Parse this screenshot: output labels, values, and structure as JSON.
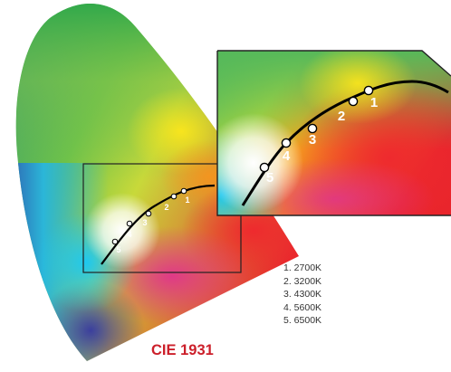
{
  "diagram": {
    "title": "CIE 1931",
    "accent_color": "#cc1f2a",
    "points": [
      {
        "label": "1",
        "name": "2700K"
      },
      {
        "label": "2",
        "name": "3200K"
      },
      {
        "label": "3",
        "name": "4300K"
      },
      {
        "label": "4",
        "name": "5600K"
      },
      {
        "label": "5",
        "name": "6500K"
      }
    ],
    "legend": [
      "1. 2700K",
      "2. 3200K",
      "3. 4300K",
      "4. 5600K",
      "5. 6500K"
    ]
  }
}
